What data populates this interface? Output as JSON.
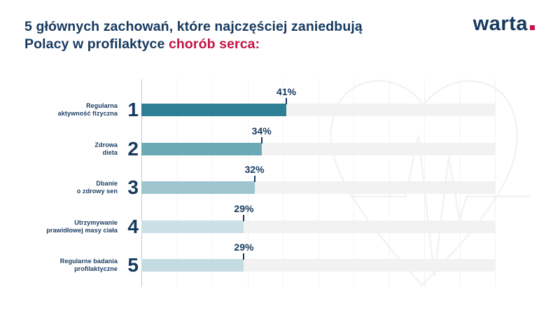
{
  "header": {
    "title_line1": "5 głównych zachowań, które najczęściej zaniedbują",
    "title_line2_normal": "Polacy w profilaktyce ",
    "title_line2_accent": "chorób serca:",
    "logo_text": "warta",
    "logo_dot": "."
  },
  "colors": {
    "navy": "#16395f",
    "crimson": "#c3134a",
    "track": "#f2f2f2",
    "gridline": "#e4e6e8",
    "axis": "#bfccd6",
    "watermark": "#f3f3f3",
    "bar_colors": [
      "#2e7f95",
      "#6ca9b6",
      "#9dc4cf",
      "#c9e0e6",
      "#c4dce1"
    ]
  },
  "chart_data": {
    "type": "bar",
    "orientation": "horizontal",
    "title": "5 głównych zachowań, które najczęściej zaniedbują Polacy w profilaktyce chorób serca:",
    "categories": [
      "Regularna\naktywność fizyczna",
      "Zdrowa\ndieta",
      "Dbanie\no zdrowy sen",
      "Utrzymywanie\nprawidłowej masy ciała",
      "Regularne badania\nprofilaktyczne"
    ],
    "ranks": [
      "1",
      "2",
      "3",
      "4",
      "5"
    ],
    "values": [
      41,
      34,
      32,
      29,
      29
    ],
    "value_labels": [
      "41%",
      "34%",
      "32%",
      "29%",
      "29%"
    ],
    "xlim": [
      0,
      100
    ],
    "gridline_step": 10,
    "grid": true,
    "legend": false,
    "watermark": "heart-ecg-outline"
  }
}
